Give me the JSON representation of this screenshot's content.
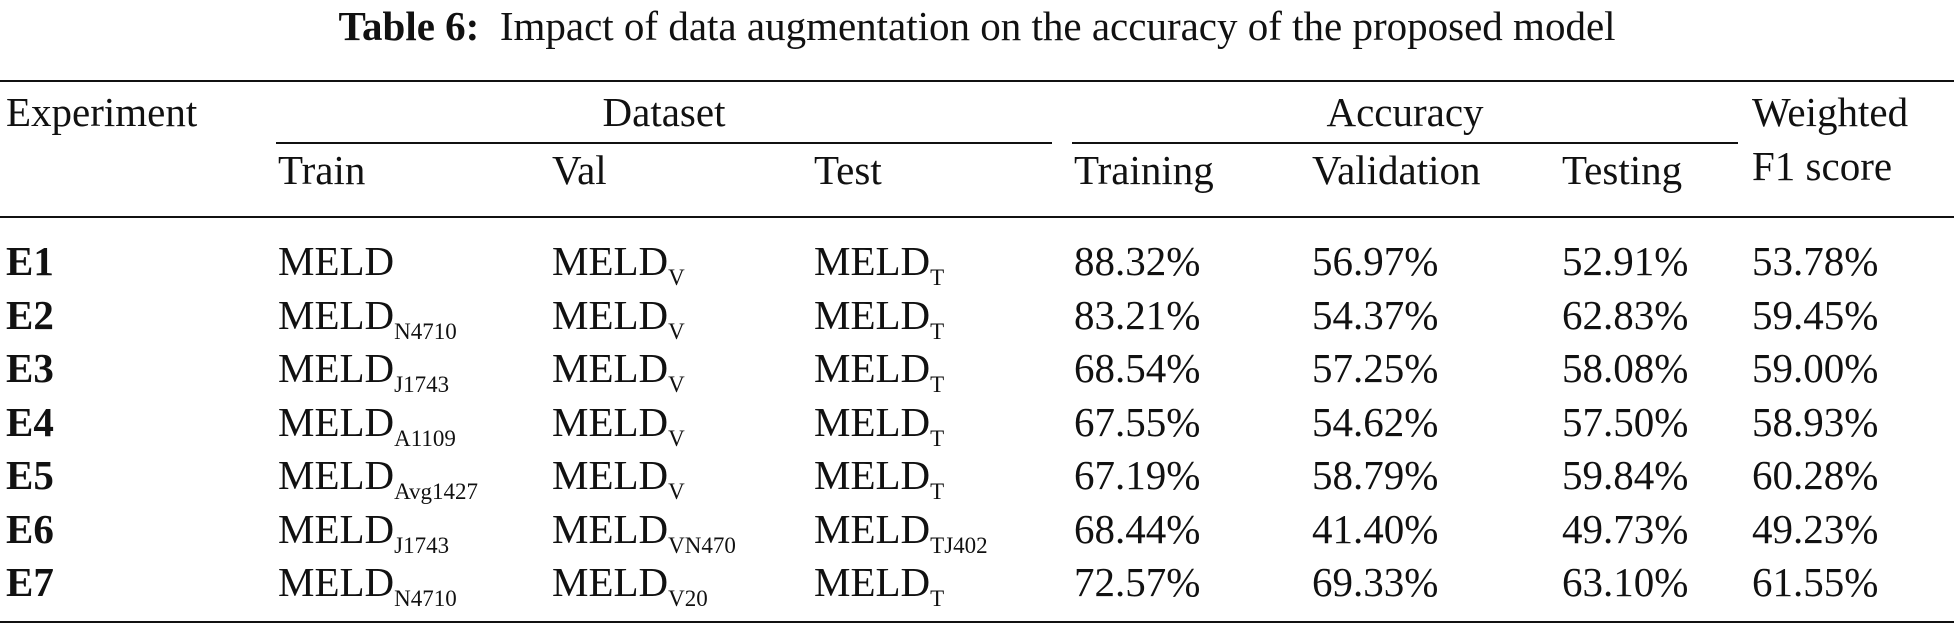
{
  "caption": {
    "label": "Table 6:",
    "text": "Impact of data augmentation on the accuracy of the proposed model"
  },
  "headers": {
    "experiment": "Experiment",
    "dataset_group": "Dataset",
    "train": "Train",
    "val": "Val",
    "test": "Test",
    "accuracy_group": "Accuracy",
    "training": "Training",
    "validation": "Validation",
    "testing": "Testing",
    "f1_line1": "Weighted",
    "f1_line2": "F1 score"
  },
  "rows": [
    {
      "id": "E1",
      "train": "MELD",
      "train_sub": "",
      "val": "MELD",
      "val_sub": "V",
      "test": "MELD",
      "test_sub": "T",
      "training": "88.32%",
      "validation": "56.97%",
      "testing": "52.91%",
      "f1": "53.78%"
    },
    {
      "id": "E2",
      "train": "MELD",
      "train_sub": "N4710",
      "val": "MELD",
      "val_sub": "V",
      "test": "MELD",
      "test_sub": "T",
      "training": "83.21%",
      "validation": "54.37%",
      "testing": "62.83%",
      "f1": "59.45%"
    },
    {
      "id": "E3",
      "train": "MELD",
      "train_sub": "J1743",
      "val": "MELD",
      "val_sub": "V",
      "test": "MELD",
      "test_sub": "T",
      "training": "68.54%",
      "validation": "57.25%",
      "testing": "58.08%",
      "f1": "59.00%"
    },
    {
      "id": "E4",
      "train": "MELD",
      "train_sub": "A1109",
      "val": "MELD",
      "val_sub": "V",
      "test": "MELD",
      "test_sub": "T",
      "training": "67.55%",
      "validation": "54.62%",
      "testing": "57.50%",
      "f1": "58.93%"
    },
    {
      "id": "E5",
      "train": "MELD",
      "train_sub": "Avg1427",
      "val": "MELD",
      "val_sub": "V",
      "test": "MELD",
      "test_sub": "T",
      "training": "67.19%",
      "validation": "58.79%",
      "testing": "59.84%",
      "f1": "60.28%"
    },
    {
      "id": "E6",
      "train": "MELD",
      "train_sub": "J1743",
      "val": "MELD",
      "val_sub": "VN470",
      "test": "MELD",
      "test_sub": "TJ402",
      "training": "68.44%",
      "validation": "41.40%",
      "testing": "49.73%",
      "f1": "49.23%"
    },
    {
      "id": "E7",
      "train": "MELD",
      "train_sub": "N4710",
      "val": "MELD",
      "val_sub": "V20",
      "test": "MELD",
      "test_sub": "T",
      "training": "72.57%",
      "validation": "69.33%",
      "testing": "63.10%",
      "f1": "61.55%"
    }
  ]
}
